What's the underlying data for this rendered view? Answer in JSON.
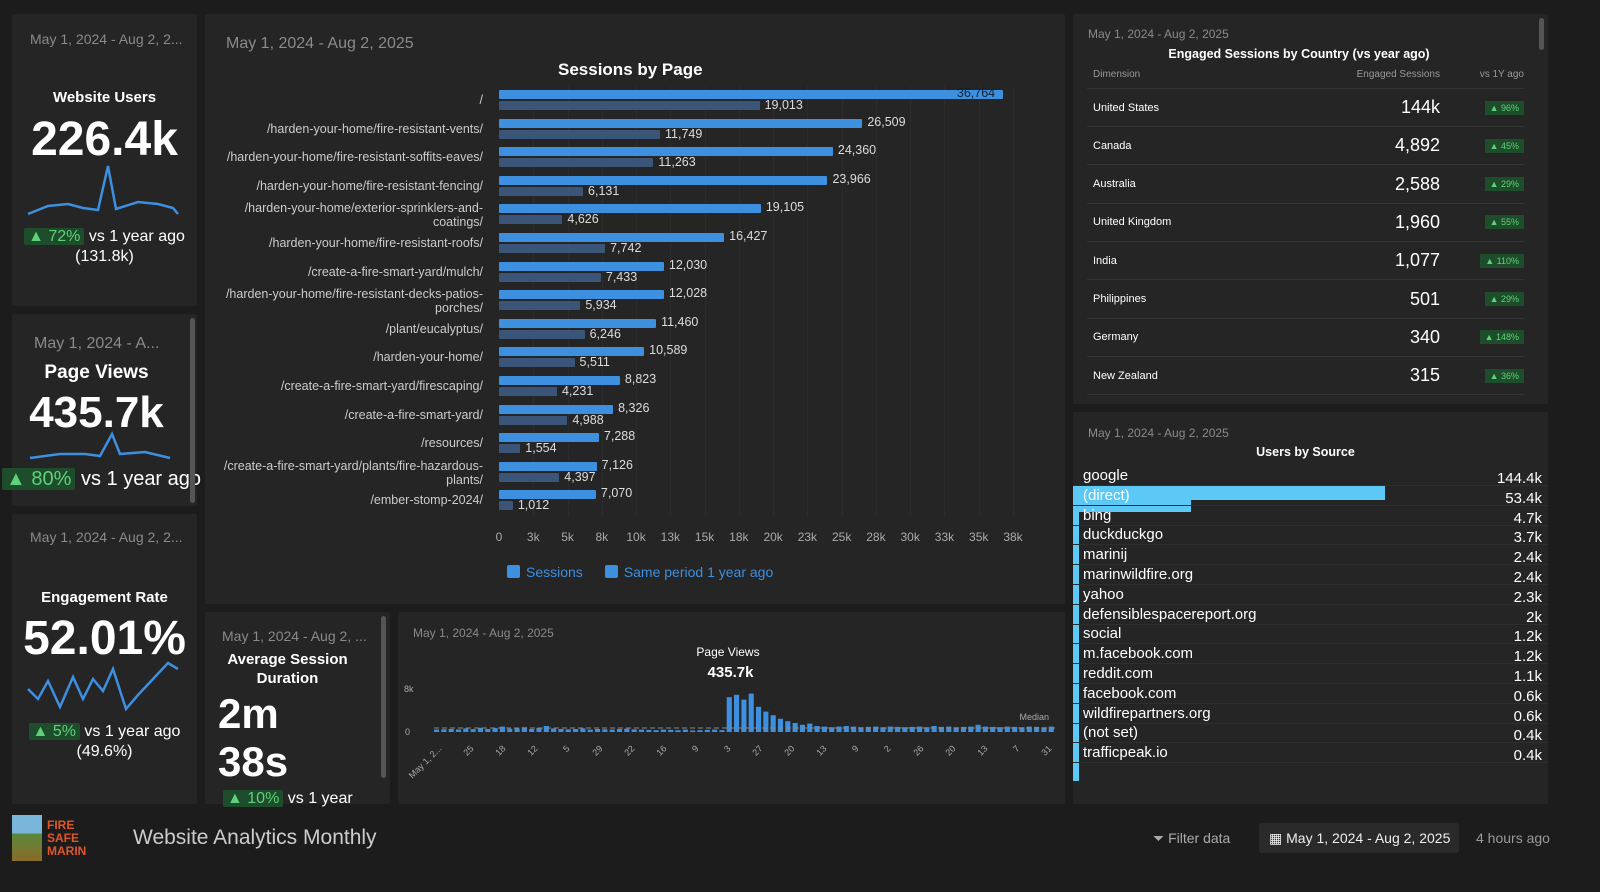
{
  "colors": {
    "accent": "#3d8fe0",
    "prev": "#3a5577",
    "positive": "#5fd17a",
    "source_bar": "#5bc8f5"
  },
  "scorecards": [
    {
      "date": "May 1, 2024 - Aug 2, 2...",
      "title": "Website Users",
      "value": "226.4k",
      "delta": "▲ 72%",
      "compare": "vs 1 year ago (131.8k)"
    },
    {
      "date": "May 1, 2024 - A...",
      "title": "Page Views",
      "value": "435.7k",
      "delta": "▲ 80%",
      "compare": "vs 1 year ago"
    },
    {
      "date": "May 1, 2024 - Aug 2, 2...",
      "title": "Engagement Rate",
      "value": "52.01%",
      "delta": "▲ 5%",
      "compare": "vs 1 year ago (49.6%)"
    },
    {
      "date": "May 1, 2024 - Aug 2, ...",
      "title": "Average Session Duration",
      "value": "2m 38s",
      "delta": "▲ 10%",
      "compare": "vs 1 year"
    }
  ],
  "sessions_chart": {
    "date": "May 1, 2024 - Aug 2, 2025"
  },
  "chart_data": [
    {
      "type": "bar",
      "title": "Sessions by Page",
      "orientation": "horizontal",
      "xlim": [
        0,
        37500
      ],
      "ticks": [
        "0",
        "3k",
        "5k",
        "8k",
        "10k",
        "13k",
        "15k",
        "18k",
        "20k",
        "23k",
        "25k",
        "28k",
        "30k",
        "33k",
        "35k",
        "38k"
      ],
      "categories": [
        "/",
        "/harden-your-home/fire-resistant-vents/",
        "/harden-your-home/fire-resistant-soffits-eaves/",
        "/harden-your-home/fire-resistant-fencing/",
        "/harden-your-home/exterior-sprinklers-and-coatings/",
        "/harden-your-home/fire-resistant-roofs/",
        "/create-a-fire-smart-yard/mulch/",
        "/harden-your-home/fire-resistant-decks-patios-porches/",
        "/plant/eucalyptus/",
        "/harden-your-home/",
        "/create-a-fire-smart-yard/firescaping/",
        "/create-a-fire-smart-yard/",
        "/resources/",
        "/create-a-fire-smart-yard/plants/fire-hazardous-plants/",
        "/ember-stomp-2024/"
      ],
      "series": [
        {
          "name": "Sessions",
          "values": [
            36764,
            26509,
            24360,
            23966,
            19105,
            16427,
            12030,
            12028,
            11460,
            10589,
            8823,
            8326,
            7288,
            7126,
            7070
          ]
        },
        {
          "name": "Same period 1 year ago",
          "values": [
            19013,
            11749,
            11263,
            6131,
            4626,
            7742,
            7433,
            5934,
            6246,
            5511,
            4231,
            4988,
            1554,
            4397,
            1012
          ]
        }
      ],
      "legend": "bottom"
    },
    {
      "type": "bar",
      "title": "Page Views",
      "total": "435.7k",
      "date": "May 1, 2024 - Aug 2, 2025",
      "ylim": [
        0,
        8000
      ],
      "yticks": [
        "0",
        "8k"
      ],
      "xticks": [
        "May 1, 2...",
        "25",
        "18",
        "12",
        "5",
        "29",
        "22",
        "16",
        "9",
        "3",
        "27",
        "20",
        "13",
        "9",
        "2",
        "26",
        "20",
        "13",
        "7",
        "31"
      ],
      "reference_line": "Median",
      "values": [
        400,
        450,
        500,
        420,
        600,
        480,
        700,
        500,
        650,
        900,
        550,
        600,
        800,
        500,
        700,
        1000,
        600,
        500,
        450,
        500,
        600,
        400,
        500,
        450,
        400,
        500,
        550,
        450,
        400,
        350,
        300,
        400,
        350,
        300,
        400,
        250,
        300,
        350,
        400,
        300,
        5800,
        6200,
        5400,
        6400,
        4200,
        3400,
        2800,
        2200,
        1800,
        1500,
        1200,
        1400,
        1000,
        900,
        800,
        900,
        1000,
        900,
        800,
        850,
        900,
        800,
        900,
        850,
        800,
        850,
        900,
        800,
        1000,
        850,
        900,
        800,
        850,
        900,
        1200,
        900,
        850,
        800,
        900,
        850,
        800,
        900,
        850,
        800,
        900
      ]
    }
  ],
  "country_table": {
    "date": "May 1, 2024 - Aug 2, 2025",
    "title": "Engaged Sessions by Country (vs year ago)",
    "headers": [
      "Dimension",
      "Engaged Sessions",
      "vs 1Y ago"
    ],
    "rows": [
      [
        "United States",
        "144k",
        "▲ 96%"
      ],
      [
        "Canada",
        "4,892",
        "▲ 45%"
      ],
      [
        "Australia",
        "2,588",
        "▲ 29%"
      ],
      [
        "United Kingdom",
        "1,960",
        "▲ 55%"
      ],
      [
        "India",
        "1,077",
        "▲ 110%"
      ],
      [
        "Philippines",
        "501",
        "▲ 29%"
      ],
      [
        "Germany",
        "340",
        "▲ 148%"
      ],
      [
        "New Zealand",
        "315",
        "▲ 36%"
      ]
    ]
  },
  "source_table": {
    "date": "May 1, 2024 - Aug 2, 2025",
    "title": "Users by Source",
    "rows": [
      [
        "google",
        "144.4k"
      ],
      [
        "(direct)",
        "53.4k"
      ],
      [
        "bing",
        "4.7k"
      ],
      [
        "duckduckgo",
        "3.7k"
      ],
      [
        "marinij",
        "2.4k"
      ],
      [
        "marinwildfire.org",
        "2.4k"
      ],
      [
        "yahoo",
        "2.3k"
      ],
      [
        "defensiblespacereport.org",
        "2k"
      ],
      [
        "social",
        "1.2k"
      ],
      [
        "m.facebook.com",
        "1.2k"
      ],
      [
        "reddit.com",
        "1.1k"
      ],
      [
        "facebook.com",
        "0.6k"
      ],
      [
        "wildfirepartners.org",
        "0.6k"
      ],
      [
        "(not set)",
        "0.4k"
      ],
      [
        "trafficpeak.io",
        "0.4k"
      ]
    ]
  },
  "footer": {
    "logo_text": "FIRE SAFE MARIN",
    "report_title": "Website Analytics Monthly",
    "filter_label": "Filter data",
    "date_range": "May 1, 2024 - Aug 2, 2025",
    "updated": "4 hours ago"
  }
}
